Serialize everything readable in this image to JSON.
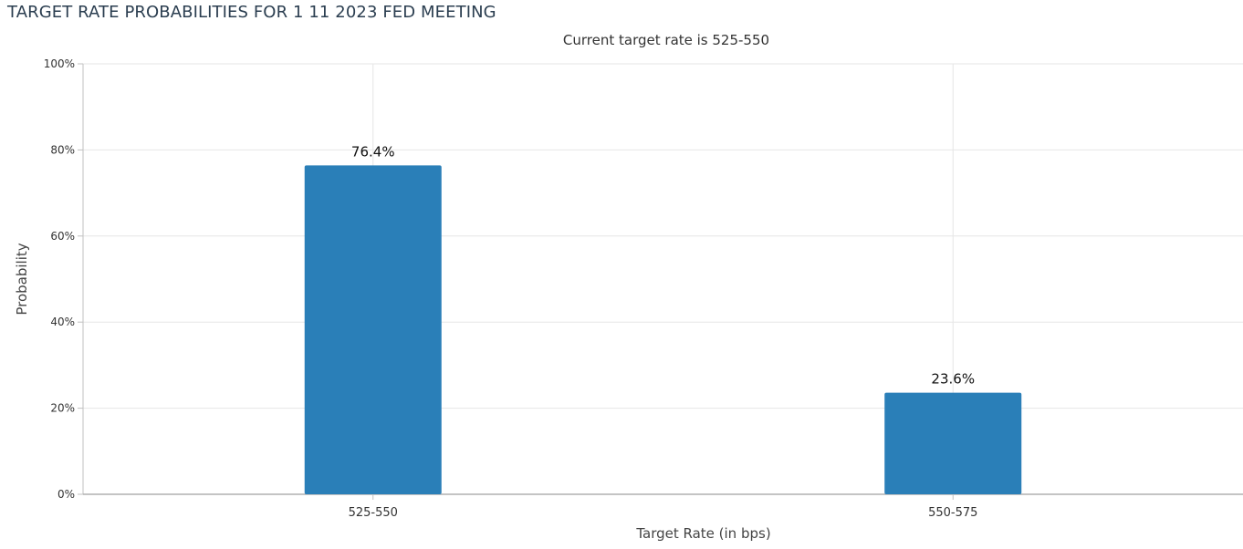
{
  "page_title": "TARGET RATE PROBABILITIES FOR 1 11 2023 FED MEETING",
  "subtitle": "Current target rate is 525-550",
  "chart_data": {
    "type": "bar",
    "title": "TARGET RATE PROBABILITIES FOR 1 11 2023 FED MEETING",
    "subtitle": "Current target rate is 525-550",
    "xlabel": "Target Rate (in bps)",
    "ylabel": "Probability",
    "categories": [
      "525-550",
      "550-575"
    ],
    "values": [
      76.4,
      23.6
    ],
    "data_labels": [
      "76.4%",
      "23.6%"
    ],
    "ylim": [
      0,
      100
    ],
    "yticks": [
      0,
      20,
      40,
      60,
      80,
      100
    ],
    "ytick_labels": [
      "0%",
      "20%",
      "40%",
      "60%",
      "80%",
      "100%"
    ],
    "grid": true,
    "legend": "none",
    "colors": {
      "bar": "#2a7fb8",
      "grid": "#e6e6e6",
      "axis": "#c0c0c0",
      "tick_text": "#333333",
      "title_text": "#2b3e50"
    }
  }
}
